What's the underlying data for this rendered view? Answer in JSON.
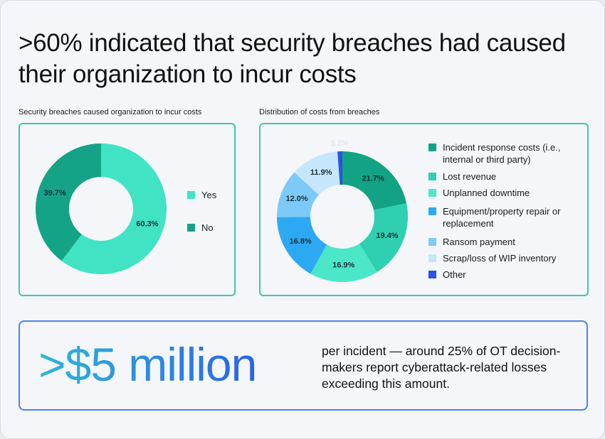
{
  "header": {
    "title": ">60% indicated that security breaches had caused their organization to incur costs"
  },
  "chart_data": [
    {
      "type": "donut",
      "title": "Security breaches caused organization to incur costs",
      "categories": [
        "Yes",
        "No"
      ],
      "values": [
        60.3,
        39.7
      ],
      "value_labels": [
        "60.3%",
        "39.7%"
      ],
      "colors": [
        "#40e3c3",
        "#14a386"
      ]
    },
    {
      "type": "donut",
      "title": "Distribution of costs from breaches",
      "categories": [
        "Incident response costs (i.e., internal or third party)",
        "Lost revenue",
        "Unplanned downtime",
        "Equipment/property repair or replacement",
        "Ransom payment",
        "Scrap/loss of WIP inventory",
        "Other"
      ],
      "values": [
        21.7,
        19.4,
        16.9,
        16.8,
        12.0,
        11.9,
        1.2
      ],
      "value_labels": [
        "21.7%",
        "19.4%",
        "16.9%",
        "16.8%",
        "12.0%",
        "11.9%",
        "1.2%"
      ],
      "colors": [
        "#13a283",
        "#2fd0b1",
        "#4be7c9",
        "#2da9f4",
        "#7dcaf8",
        "#c6e7fb",
        "#2a52e6"
      ]
    }
  ],
  "callout": {
    "figure": ">$5 million",
    "text": "per incident — around 25% of OT decision-makers report cyberattack-related losses exceeding this amount."
  }
}
